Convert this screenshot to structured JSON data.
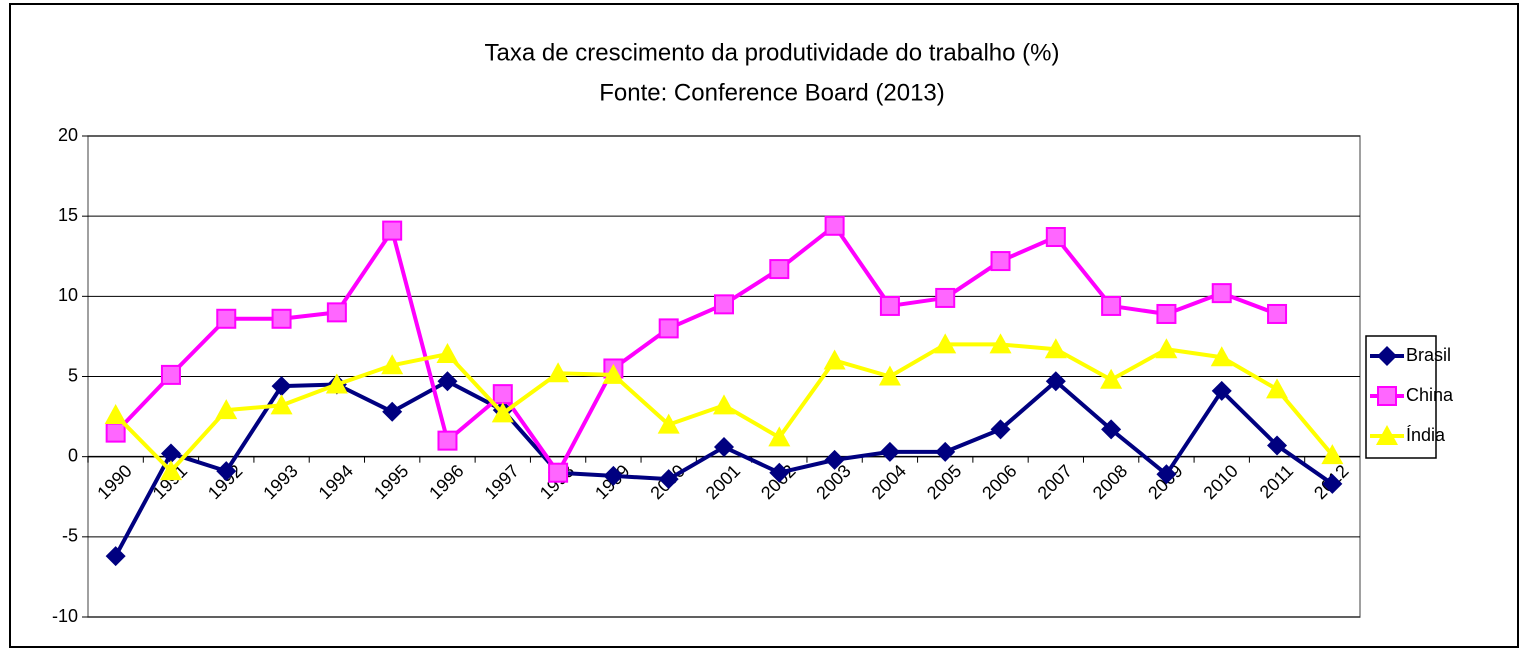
{
  "chart_data": {
    "type": "line",
    "title": "Taxa de crescimento da produtividade do trabalho (%)",
    "subtitle": "Fonte: Conference Board (2013)",
    "categories": [
      "1990",
      "1991",
      "1992",
      "1993",
      "1994",
      "1995",
      "1996",
      "1997",
      "1998",
      "1999",
      "2000",
      "2001",
      "2002",
      "2003",
      "2004",
      "2005",
      "2006",
      "2007",
      "2008",
      "2009",
      "2010",
      "2011",
      "2012"
    ],
    "series": [
      {
        "name": "Brasil",
        "color": "#000080",
        "marker": "diamond",
        "values": [
          -6.2,
          0.2,
          -0.9,
          4.4,
          4.5,
          2.8,
          4.7,
          2.9,
          -1.0,
          -1.2,
          -1.4,
          0.6,
          -1.0,
          -0.2,
          0.3,
          0.3,
          1.7,
          4.7,
          1.7,
          -1.1,
          4.1,
          0.7,
          -1.7
        ]
      },
      {
        "name": "China",
        "color": "#ff00ff",
        "marker": "square",
        "values": [
          1.5,
          5.1,
          8.6,
          8.6,
          9.0,
          14.1,
          1.0,
          3.9,
          -1.0,
          5.5,
          8.0,
          9.5,
          11.7,
          14.4,
          9.4,
          9.9,
          12.2,
          13.7,
          9.4,
          8.9,
          10.2,
          8.9,
          null
        ]
      },
      {
        "name": "Índia",
        "color": "#ffff00",
        "marker": "triangle",
        "values": [
          2.6,
          -0.9,
          2.9,
          3.2,
          4.5,
          5.7,
          6.4,
          2.7,
          5.2,
          5.1,
          2.0,
          3.2,
          1.2,
          6.0,
          5.0,
          7.0,
          7.0,
          6.7,
          4.8,
          6.7,
          6.2,
          4.2,
          0.1
        ]
      }
    ],
    "ylim": [
      -10,
      20
    ],
    "yticks": [
      -10,
      -5,
      0,
      5,
      10,
      15,
      20
    ],
    "grid": true,
    "legend": "right"
  }
}
